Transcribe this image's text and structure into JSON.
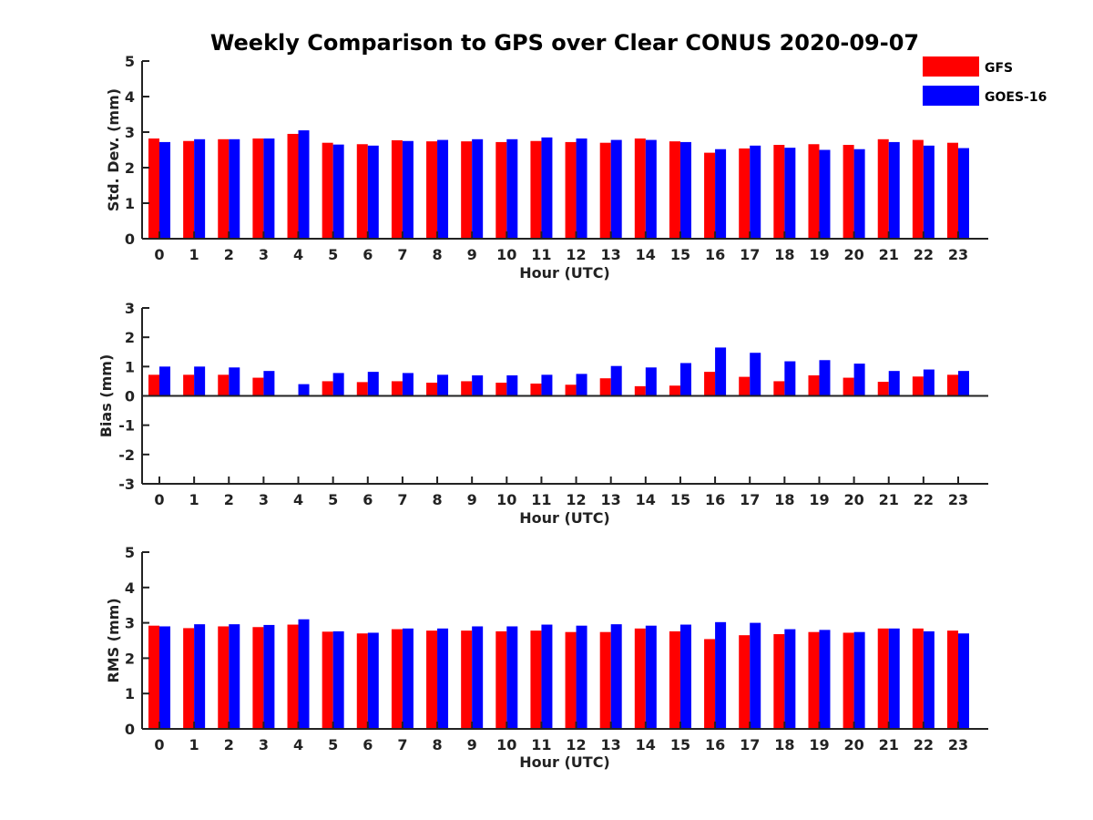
{
  "title": "Weekly Comparison to GPS over Clear CONUS 2020-09-07",
  "legend": {
    "placement": "top-right",
    "items": [
      {
        "name": "GFS",
        "color": "#ff0000"
      },
      {
        "name": "GOES-16",
        "color": "#0000ff"
      }
    ]
  },
  "chart_data": [
    {
      "type": "bar",
      "title": "",
      "xlabel": "Hour (UTC)",
      "ylabel": "Std. Dev. (mm)",
      "ylim": [
        0,
        5
      ],
      "yticks": [
        0,
        1,
        2,
        3,
        4,
        5
      ],
      "categories": [
        "0",
        "1",
        "2",
        "3",
        "4",
        "5",
        "6",
        "7",
        "8",
        "9",
        "10",
        "11",
        "12",
        "13",
        "14",
        "15",
        "16",
        "17",
        "18",
        "19",
        "20",
        "21",
        "22",
        "23"
      ],
      "series": [
        {
          "name": "GFS",
          "color": "#ff0000",
          "values": [
            2.82,
            2.75,
            2.8,
            2.82,
            2.95,
            2.7,
            2.66,
            2.77,
            2.74,
            2.74,
            2.72,
            2.75,
            2.72,
            2.7,
            2.82,
            2.74,
            2.42,
            2.54,
            2.64,
            2.66,
            2.64,
            2.8,
            2.78,
            2.7
          ]
        },
        {
          "name": "GOES-16",
          "color": "#0000ff",
          "values": [
            2.72,
            2.8,
            2.8,
            2.82,
            3.05,
            2.65,
            2.62,
            2.75,
            2.78,
            2.8,
            2.8,
            2.85,
            2.82,
            2.78,
            2.78,
            2.72,
            2.52,
            2.62,
            2.56,
            2.5,
            2.52,
            2.72,
            2.62,
            2.55
          ]
        }
      ]
    },
    {
      "type": "bar",
      "title": "",
      "xlabel": "Hour (UTC)",
      "ylabel": "Bias (mm)",
      "ylim": [
        -3,
        3
      ],
      "yticks": [
        -3,
        -2,
        -1,
        0,
        1,
        2,
        3
      ],
      "categories": [
        "0",
        "1",
        "2",
        "3",
        "4",
        "5",
        "6",
        "7",
        "8",
        "9",
        "10",
        "11",
        "12",
        "13",
        "14",
        "15",
        "16",
        "17",
        "18",
        "19",
        "20",
        "21",
        "22",
        "23"
      ],
      "series": [
        {
          "name": "GFS",
          "color": "#ff0000",
          "values": [
            0.72,
            0.72,
            0.72,
            0.62,
            0.0,
            0.5,
            0.47,
            0.5,
            0.45,
            0.5,
            0.45,
            0.42,
            0.38,
            0.6,
            0.33,
            0.35,
            0.82,
            0.65,
            0.5,
            0.7,
            0.62,
            0.48,
            0.66,
            0.72
          ]
        },
        {
          "name": "GOES-16",
          "color": "#0000ff",
          "values": [
            1.0,
            1.0,
            0.97,
            0.85,
            0.4,
            0.78,
            0.82,
            0.78,
            0.72,
            0.7,
            0.7,
            0.72,
            0.75,
            1.02,
            0.97,
            1.12,
            1.65,
            1.47,
            1.18,
            1.22,
            1.1,
            0.85,
            0.9,
            0.85
          ]
        }
      ]
    },
    {
      "type": "bar",
      "title": "",
      "xlabel": "Hour (UTC)",
      "ylabel": "RMS (mm)",
      "ylim": [
        0,
        5
      ],
      "yticks": [
        0,
        1,
        2,
        3,
        4,
        5
      ],
      "categories": [
        "0",
        "1",
        "2",
        "3",
        "4",
        "5",
        "6",
        "7",
        "8",
        "9",
        "10",
        "11",
        "12",
        "13",
        "14",
        "15",
        "16",
        "17",
        "18",
        "19",
        "20",
        "21",
        "22",
        "23"
      ],
      "series": [
        {
          "name": "GFS",
          "color": "#ff0000",
          "values": [
            2.92,
            2.85,
            2.9,
            2.88,
            2.95,
            2.75,
            2.7,
            2.82,
            2.78,
            2.78,
            2.76,
            2.78,
            2.74,
            2.74,
            2.84,
            2.76,
            2.54,
            2.65,
            2.68,
            2.74,
            2.72,
            2.84,
            2.84,
            2.78
          ]
        },
        {
          "name": "GOES-16",
          "color": "#0000ff",
          "values": [
            2.9,
            2.96,
            2.96,
            2.94,
            3.1,
            2.76,
            2.72,
            2.84,
            2.84,
            2.9,
            2.9,
            2.95,
            2.92,
            2.96,
            2.92,
            2.95,
            3.02,
            3.0,
            2.82,
            2.8,
            2.74,
            2.84,
            2.76,
            2.7
          ]
        }
      ]
    }
  ]
}
